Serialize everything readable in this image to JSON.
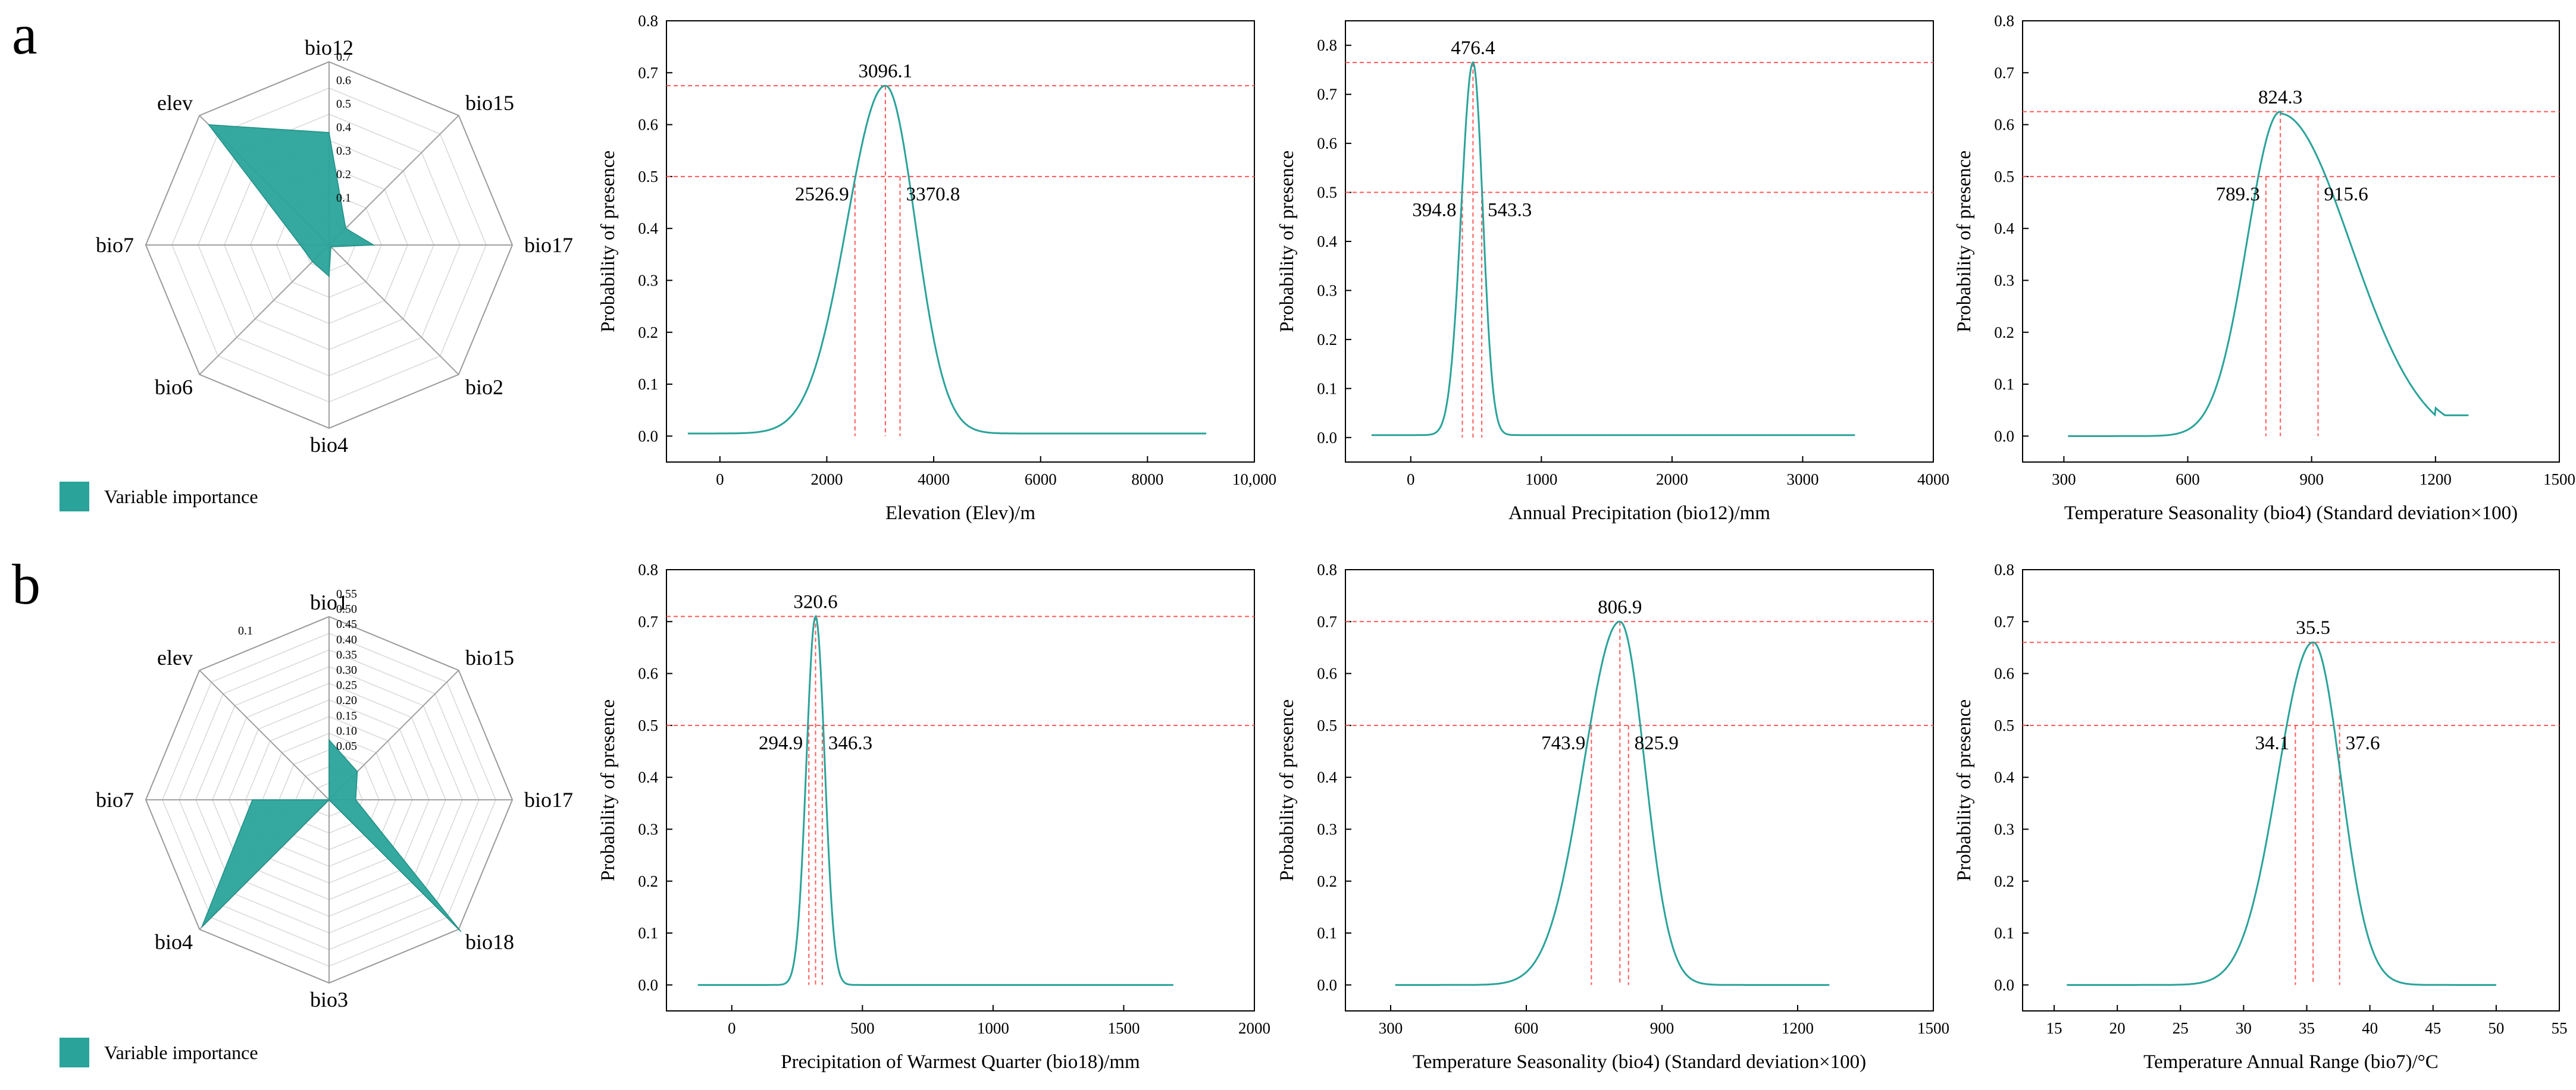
{
  "colors": {
    "fill": "#2aa39a",
    "curve": "#2aa39a",
    "ref": "#ff5a5a",
    "grid": "#d8d8d8",
    "spoke": "#a0a0a0"
  },
  "panels": [
    {
      "letter": "a",
      "radar": {
        "axes": [
          "bio12",
          "bio15",
          "bio17",
          "bio2",
          "bio4",
          "bio6",
          "bio7",
          "elev"
        ],
        "ring_labels": [
          "0.1",
          "0.2",
          "0.3",
          "0.4",
          "0.5",
          "0.6",
          "0.7"
        ],
        "max": 0.7,
        "values": [
          0.43,
          0.09,
          0.17,
          0.01,
          0.12,
          0.09,
          0.11,
          0.65
        ],
        "legend": "Variable importance"
      }
    },
    {
      "letter": "b",
      "radar": {
        "axes": [
          "bio1",
          "bio15",
          "bio17",
          "bio18",
          "bio3",
          "bio4",
          "bio7",
          "elev"
        ],
        "ring_labels": [
          "0.05",
          "0.10",
          "0.15",
          "0.20",
          "0.25",
          "0.30",
          "0.35",
          "0.40",
          "0.45",
          "0.50",
          "0.55"
        ],
        "extra_label": "0.1",
        "max": 0.55,
        "values": [
          0.18,
          0.12,
          0.08,
          0.56,
          0.0,
          0.54,
          0.23,
          0.0
        ],
        "legend": "Variable importance"
      }
    }
  ],
  "chart_data": [
    {
      "type": "line",
      "title": "",
      "xlabel": "Elevation (Elev)/m",
      "ylabel": "Probability of presence",
      "xlim": [
        -1000,
        10000
      ],
      "ylim": [
        -0.05,
        0.8
      ],
      "xticks": [
        "0",
        "2000",
        "4000",
        "6000",
        "8000",
        "10,000"
      ],
      "xtickvals": [
        0,
        2000,
        4000,
        6000,
        8000,
        10000
      ],
      "yticks": [
        "0.0",
        "0.1",
        "0.2",
        "0.3",
        "0.4",
        "0.5",
        "0.6",
        "0.7",
        "0.8"
      ],
      "curve": {
        "x_start": -600,
        "x_end": 9100,
        "base": 0.005,
        "peak_x": 3096.1,
        "peak_y": 0.675,
        "sigma_left": 720,
        "sigma_right": 560
      },
      "hlines": [
        0.675,
        0.5
      ],
      "vlines": [
        {
          "x": 2526.9,
          "y": 0.5
        },
        {
          "x": 3096.1,
          "y": 0.675
        },
        {
          "x": 3370.8,
          "y": 0.5
        }
      ],
      "labels": {
        "peak": "3096.1",
        "left": "2526.9",
        "right": "3370.8"
      }
    },
    {
      "type": "line",
      "title": "",
      "xlabel": "Annual Precipitation (bio12)/mm",
      "ylabel": "Probability of presence",
      "xlim": [
        -500,
        4000
      ],
      "ylim": [
        -0.05,
        0.85
      ],
      "xticks": [
        "0",
        "1000",
        "2000",
        "3000",
        "4000"
      ],
      "xtickvals": [
        0,
        1000,
        2000,
        3000,
        4000
      ],
      "yticks": [
        "0.0",
        "0.1",
        "0.2",
        "0.3",
        "0.4",
        "0.5",
        "0.6",
        "0.7",
        "0.8"
      ],
      "curve": {
        "x_start": -300,
        "x_end": 3400,
        "base": 0.005,
        "peak_x": 476.4,
        "peak_y": 0.765,
        "sigma_left": 90,
        "sigma_right": 75
      },
      "hlines": [
        0.765,
        0.5
      ],
      "vlines": [
        {
          "x": 394.8,
          "y": 0.5
        },
        {
          "x": 476.4,
          "y": 0.765
        },
        {
          "x": 543.3,
          "y": 0.5
        }
      ],
      "labels": {
        "peak": "476.4",
        "left": "394.8",
        "right": "543.3"
      }
    },
    {
      "type": "line",
      "title": "",
      "xlabel": "Temperature Seasonality (bio4) (Standard deviation×100)",
      "ylabel": "Probability of presence",
      "xlim": [
        200,
        1500
      ],
      "ylim": [
        -0.05,
        0.8
      ],
      "xticks": [
        "300",
        "600",
        "900",
        "1200",
        "1500"
      ],
      "xtickvals": [
        300,
        600,
        900,
        1200,
        1500
      ],
      "yticks": [
        "0.0",
        "0.1",
        "0.2",
        "0.3",
        "0.4",
        "0.5",
        "0.6",
        "0.7",
        "0.8"
      ],
      "curve": {
        "x_start": 310,
        "x_end": 1280,
        "base": 0.0,
        "peak_x": 824.3,
        "peak_y": 0.625,
        "sigma_left": 80,
        "sigma_right": 170,
        "floor_after": 1200,
        "floor": 0.04
      },
      "hlines": [
        0.625,
        0.5
      ],
      "vlines": [
        {
          "x": 789.3,
          "y": 0.5
        },
        {
          "x": 824.3,
          "y": 0.625
        },
        {
          "x": 915.6,
          "y": 0.5
        }
      ],
      "labels": {
        "peak": "824.3",
        "left": "789.3",
        "right": "915.6"
      }
    },
    {
      "type": "line",
      "title": "",
      "xlabel": "Precipitation of Warmest Quarter (bio18)/mm",
      "ylabel": "Probability of presence",
      "xlim": [
        -250,
        2000
      ],
      "ylim": [
        -0.05,
        0.8
      ],
      "xticks": [
        "0",
        "500",
        "1000",
        "1500",
        "2000"
      ],
      "xtickvals": [
        0,
        500,
        1000,
        1500,
        2000
      ],
      "yticks": [
        "0.0",
        "0.1",
        "0.2",
        "0.3",
        "0.4",
        "0.5",
        "0.6",
        "0.7",
        "0.8"
      ],
      "curve": {
        "x_start": -130,
        "x_end": 1690,
        "base": 0.0,
        "peak_x": 320.6,
        "peak_y": 0.71,
        "sigma_left": 35,
        "sigma_right": 35
      },
      "hlines": [
        0.71,
        0.5
      ],
      "vlines": [
        {
          "x": 294.9,
          "y": 0.5
        },
        {
          "x": 320.6,
          "y": 0.71
        },
        {
          "x": 346.3,
          "y": 0.5
        }
      ],
      "labels": {
        "peak": "320.6",
        "left": "294.9",
        "right": "346.3"
      }
    },
    {
      "type": "line",
      "title": "",
      "xlabel": "Temperature Seasonality (bio4) (Standard deviation×100)",
      "ylabel": "Probability of presence",
      "xlim": [
        200,
        1500
      ],
      "ylim": [
        -0.05,
        0.8
      ],
      "xticks": [
        "300",
        "600",
        "900",
        "1200",
        "1500"
      ],
      "xtickvals": [
        300,
        600,
        900,
        1200,
        1500
      ],
      "yticks": [
        "0.0",
        "0.1",
        "0.2",
        "0.3",
        "0.4",
        "0.5",
        "0.6",
        "0.7",
        "0.8"
      ],
      "curve": {
        "x_start": 310,
        "x_end": 1270,
        "base": 0.0,
        "peak_x": 806.9,
        "peak_y": 0.7,
        "sigma_left": 80,
        "sigma_right": 55
      },
      "hlines": [
        0.7,
        0.5
      ],
      "vlines": [
        {
          "x": 743.9,
          "y": 0.5
        },
        {
          "x": 806.9,
          "y": 0.7
        },
        {
          "x": 825.9,
          "y": 0.5
        }
      ],
      "labels": {
        "peak": "806.9",
        "left": "743.9",
        "right": "825.9"
      }
    },
    {
      "type": "line",
      "title": "",
      "xlabel": "Temperature Annual Range (bio7)/°C",
      "ylabel": "Probability of presence",
      "xlim": [
        12.5,
        55
      ],
      "ylim": [
        -0.05,
        0.8
      ],
      "xticks": [
        "15",
        "20",
        "25",
        "30",
        "35",
        "40",
        "45",
        "50",
        "55"
      ],
      "xtickvals": [
        15,
        20,
        25,
        30,
        35,
        40,
        45,
        50,
        55
      ],
      "yticks": [
        "0.0",
        "0.1",
        "0.2",
        "0.3",
        "0.4",
        "0.5",
        "0.6",
        "0.7",
        "0.8"
      ],
      "curve": {
        "x_start": 16,
        "x_end": 50,
        "base": 0.0,
        "peak_x": 35.5,
        "peak_y": 0.66,
        "sigma_left": 2.8,
        "sigma_right": 2.2
      },
      "hlines": [
        0.66,
        0.5
      ],
      "vlines": [
        {
          "x": 34.1,
          "y": 0.5
        },
        {
          "x": 35.5,
          "y": 0.66
        },
        {
          "x": 37.6,
          "y": 0.5
        }
      ],
      "labels": {
        "peak": "35.5",
        "left": "34.1",
        "right": "37.6"
      }
    }
  ]
}
